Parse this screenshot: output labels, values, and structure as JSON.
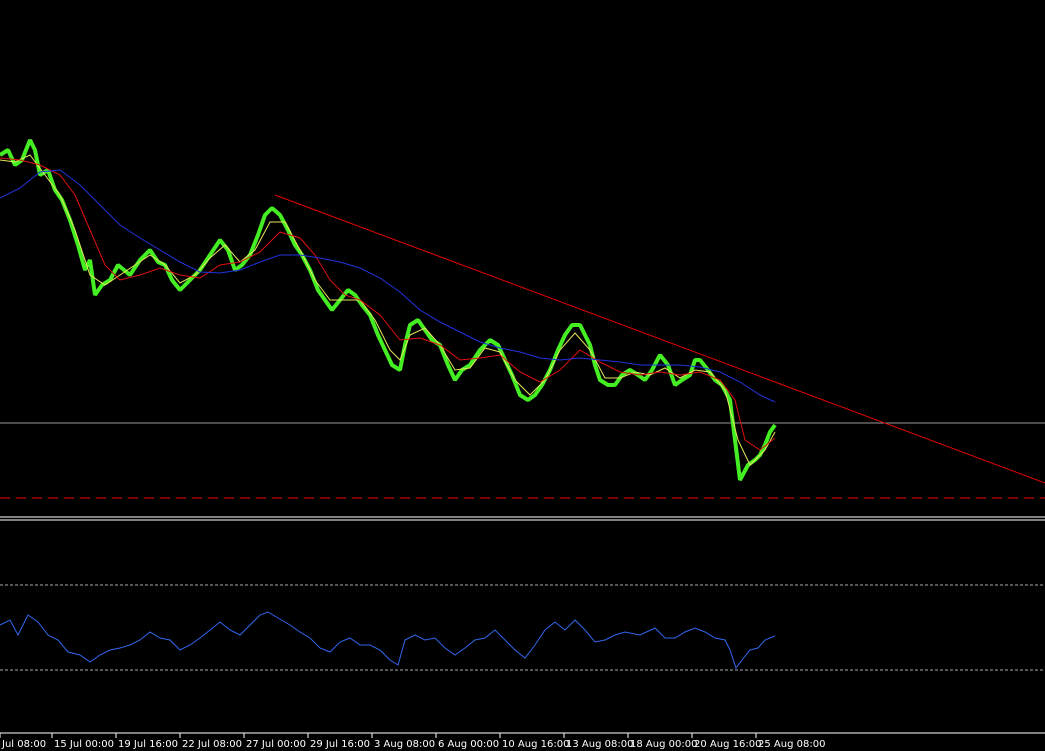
{
  "time_axis": {
    "labels": [
      "Jul 08:00",
      "15 Jul 00:00",
      "19 Jul 16:00",
      "22 Jul 08:00",
      "27 Jul 00:00",
      "29 Jul 16:00",
      "3 Aug 08:00",
      "6 Aug 00:00",
      "10 Aug 16:00",
      "13 Aug 08:00",
      "18 Aug 00:00",
      "20 Aug 16:00",
      "25 Aug 08:00"
    ]
  }
}
